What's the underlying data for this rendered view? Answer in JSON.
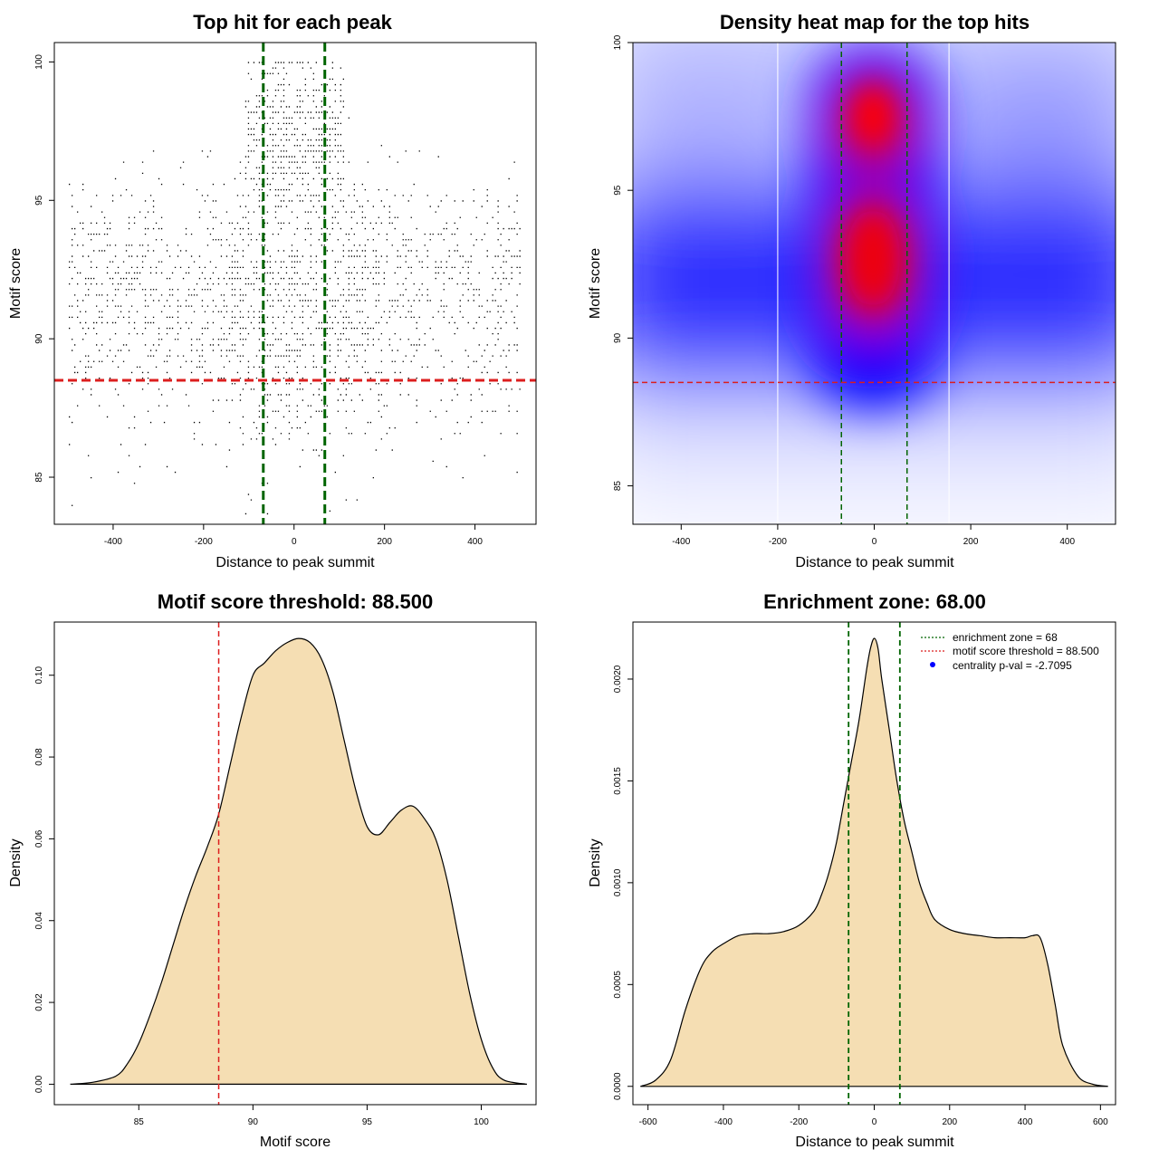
{
  "chart_data": [
    {
      "type": "scatter",
      "title": "Top hit for each peak",
      "xlabel": "Distance to peak summit",
      "ylabel": "Motif score",
      "xlim": [
        -530,
        535
      ],
      "ylim": [
        83.3,
        100.7
      ],
      "x_ticks": [
        -400,
        -200,
        0,
        200,
        400
      ],
      "y_ticks": [
        85,
        90,
        95,
        100
      ],
      "points": "approx. 2500 motif hits; x spread uniformly over -500..500 with concentration within ±100; y between 83.7 and 100 with modes near 92 and 97.5",
      "vlines": [
        {
          "value": -68,
          "color": "#006400"
        },
        {
          "value": 68,
          "color": "#006400"
        }
      ],
      "hlines": [
        {
          "value": 88.5,
          "color": "#dc1e1e"
        }
      ]
    },
    {
      "type": "heatmap",
      "title": "Density heat map for the top hits",
      "xlabel": "Distance to peak summit",
      "ylabel": "Motif score",
      "xlim": [
        -500,
        500
      ],
      "ylim": [
        83.7,
        100
      ],
      "x_ticks": [
        -400,
        -200,
        0,
        200,
        400
      ],
      "y_ticks": [
        85,
        90,
        95,
        100
      ],
      "colors": [
        "#ffffff",
        "#0000ff",
        "#ff0000"
      ],
      "hotspots": [
        {
          "x": 0,
          "y": 97.5
        },
        {
          "x": 0,
          "y": 92.3
        }
      ],
      "white_vlines": [
        -200,
        155
      ],
      "vlines": [
        {
          "value": -68,
          "color": "#006400"
        },
        {
          "value": 68,
          "color": "#006400"
        }
      ],
      "hlines": [
        {
          "value": 88.5,
          "color": "#dc1e1e"
        }
      ]
    },
    {
      "type": "area",
      "title": "Motif score threshold: 88.500",
      "xlabel": "Motif score",
      "ylabel": "Density",
      "xlim": [
        81.3,
        102.4
      ],
      "ylim": [
        -0.005,
        0.113
      ],
      "x_ticks": [
        85,
        90,
        95,
        100
      ],
      "y_ticks": [
        0.0,
        0.02,
        0.04,
        0.06,
        0.08,
        0.1
      ],
      "y_tick_labels": [
        "0.00",
        "0.02",
        "0.04",
        "0.06",
        "0.08",
        "0.10"
      ],
      "fill": "#f5deb3",
      "x": [
        82,
        83,
        84,
        84.5,
        85,
        85.5,
        86,
        86.5,
        87,
        87.5,
        88,
        88.5,
        89,
        89.5,
        90,
        90.5,
        91,
        91.5,
        92,
        92.5,
        93,
        93.5,
        94,
        94.5,
        95,
        95.5,
        96,
        96.5,
        97,
        97.5,
        98,
        98.5,
        99,
        99.5,
        100,
        100.5,
        101,
        102
      ],
      "values": [
        0,
        0.0005,
        0.002,
        0.005,
        0.01,
        0.017,
        0.025,
        0.034,
        0.043,
        0.051,
        0.058,
        0.066,
        0.078,
        0.09,
        0.1,
        0.103,
        0.106,
        0.108,
        0.109,
        0.108,
        0.104,
        0.096,
        0.084,
        0.072,
        0.063,
        0.061,
        0.064,
        0.067,
        0.068,
        0.065,
        0.06,
        0.05,
        0.036,
        0.022,
        0.011,
        0.004,
        0.001,
        0
      ],
      "vlines": [
        {
          "value": 88.5,
          "color": "#dc1e1e"
        }
      ]
    },
    {
      "type": "area",
      "title": "Enrichment zone: 68.00",
      "xlabel": "Distance to peak summit",
      "ylabel": "Density",
      "xlim": [
        -640,
        640
      ],
      "ylim": [
        -9e-05,
        0.00228
      ],
      "x_ticks": [
        -600,
        -400,
        -200,
        0,
        200,
        400,
        600
      ],
      "y_ticks": [
        0.0,
        0.0005,
        0.001,
        0.0015,
        0.002
      ],
      "y_tick_labels": [
        "0.0000",
        "0.0005",
        "0.0010",
        "0.0015",
        "0.0020"
      ],
      "fill": "#f5deb3",
      "x": [
        -620,
        -580,
        -540,
        -500,
        -460,
        -430,
        -400,
        -360,
        -320,
        -280,
        -240,
        -200,
        -160,
        -140,
        -120,
        -100,
        -80,
        -60,
        -40,
        -20,
        -10,
        0,
        10,
        20,
        40,
        60,
        80,
        100,
        120,
        140,
        160,
        200,
        240,
        280,
        320,
        360,
        400,
        420,
        440,
        460,
        480,
        500,
        540,
        580,
        620
      ],
      "values": [
        0,
        3e-05,
        0.00013,
        0.00038,
        0.00058,
        0.00066,
        0.0007,
        0.00074,
        0.00075,
        0.00075,
        0.00076,
        0.00079,
        0.00086,
        0.00094,
        0.00105,
        0.0012,
        0.0014,
        0.0016,
        0.0018,
        0.00205,
        0.00215,
        0.0022,
        0.00215,
        0.002,
        0.00175,
        0.0015,
        0.0013,
        0.00115,
        0.001,
        0.0009,
        0.00082,
        0.00077,
        0.00075,
        0.00074,
        0.00073,
        0.00073,
        0.00073,
        0.00074,
        0.00073,
        0.0006,
        0.0004,
        0.0002,
        5e-05,
        1e-05,
        0
      ],
      "vlines": [
        {
          "value": -68,
          "color": "#006400"
        },
        {
          "value": 68,
          "color": "#006400"
        }
      ],
      "legend": {
        "placement": "top-right",
        "entries": [
          {
            "label": "enrichment zone = 68",
            "color": "#006400",
            "style": "dotted-line"
          },
          {
            "label": "motif score threshold = 88.500",
            "color": "#dc1e1e",
            "style": "dotted-line"
          },
          {
            "label": "centrality p-val = -2.7095",
            "color": "#0000ff",
            "style": "point"
          }
        ]
      }
    }
  ]
}
